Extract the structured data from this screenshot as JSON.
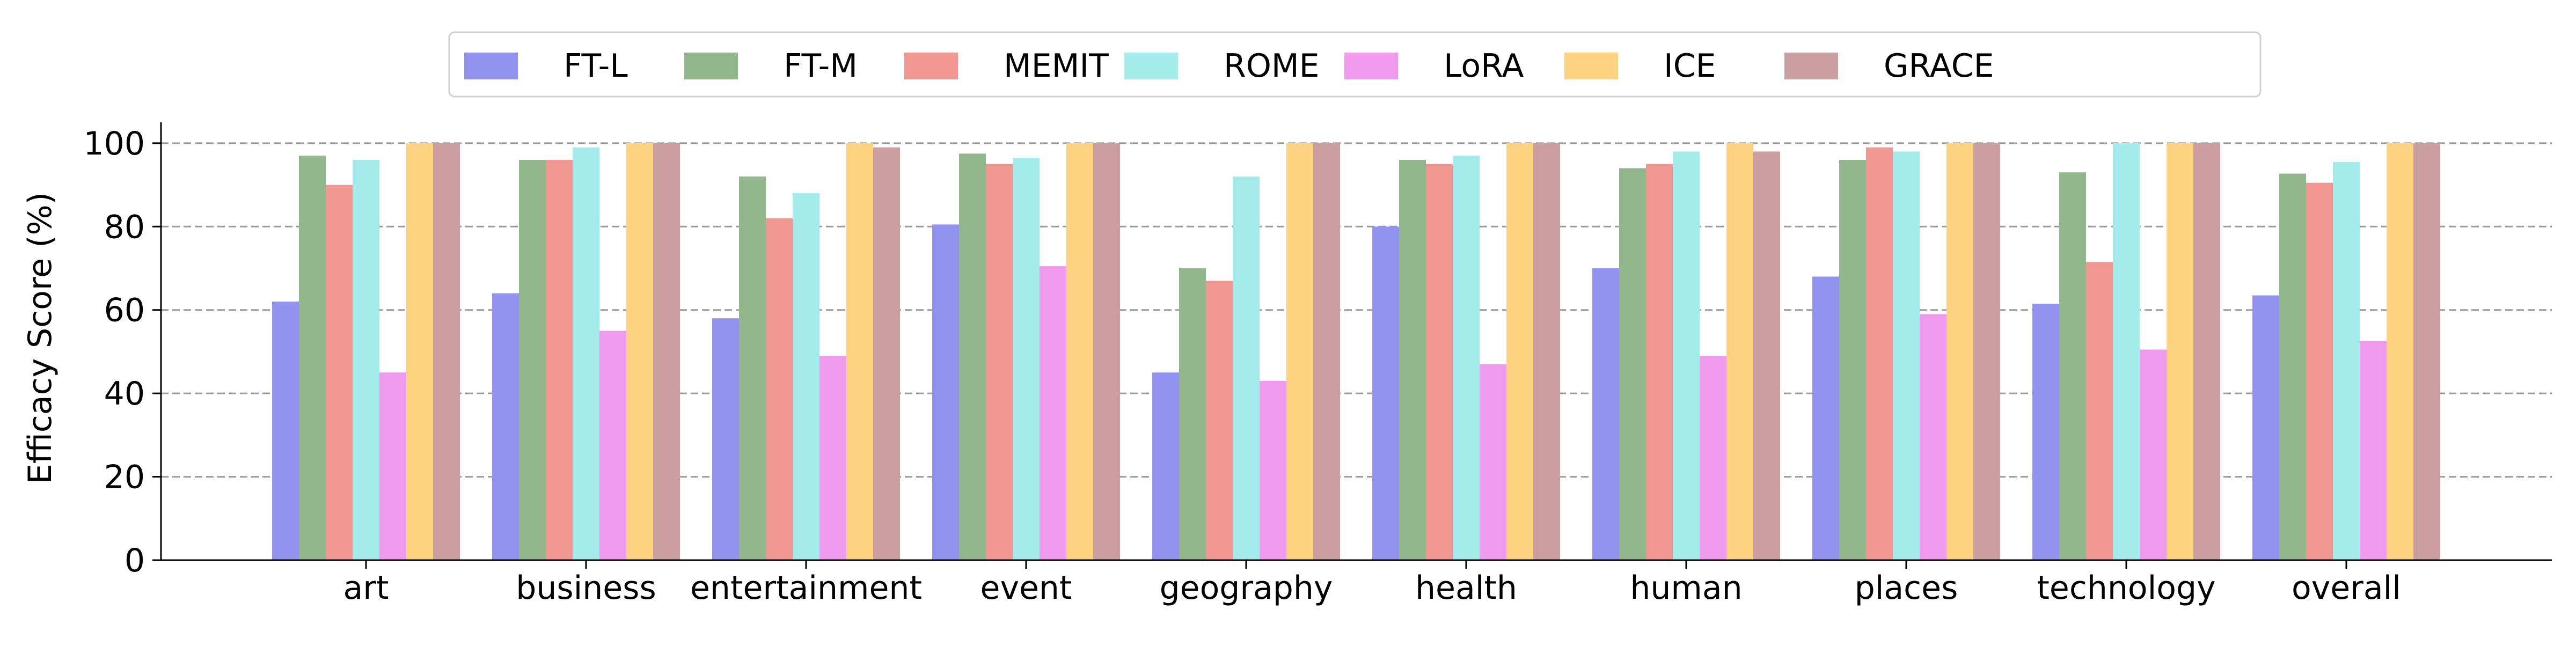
{
  "chart_data": {
    "type": "bar",
    "title": "",
    "xlabel": "",
    "ylabel": "Efficacy Score (%)",
    "ylim": [
      0,
      105
    ],
    "yticks": [
      0,
      20,
      40,
      60,
      80,
      100
    ],
    "grid": "horizontal dashed",
    "legend_position": "top-center",
    "categories": [
      "art",
      "business",
      "entertainment",
      "event",
      "geography",
      "health",
      "human",
      "places",
      "technology",
      "overall"
    ],
    "series": [
      {
        "name": "FT-L",
        "color": "#9193ee",
        "values": [
          62,
          64,
          58,
          80.5,
          45,
          80,
          70,
          68,
          61.5,
          63.5
        ]
      },
      {
        "name": "FT-M",
        "color": "#93b78d",
        "values": [
          97,
          96,
          92,
          97.5,
          70,
          96,
          94,
          96,
          93,
          92.7
        ]
      },
      {
        "name": "MEMIT",
        "color": "#f19792",
        "values": [
          90,
          96,
          82,
          95,
          67,
          95,
          95,
          99,
          71.5,
          90.5
        ]
      },
      {
        "name": "ROME",
        "color": "#a5ebec",
        "values": [
          96,
          99,
          88,
          96.5,
          92,
          97,
          98,
          98,
          100,
          95.5
        ]
      },
      {
        "name": "LoRA",
        "color": "#f09aed",
        "values": [
          45,
          55,
          49,
          70.5,
          43,
          47,
          49,
          59,
          50.5,
          52.5
        ]
      },
      {
        "name": "ICE",
        "color": "#fdd281",
        "values": [
          100,
          100,
          100,
          100,
          100,
          100,
          100,
          100,
          100,
          100
        ]
      },
      {
        "name": "GRACE",
        "color": "#cb9f9f",
        "values": [
          100,
          100,
          99,
          100,
          100,
          100,
          98,
          100,
          100,
          100
        ]
      }
    ]
  }
}
